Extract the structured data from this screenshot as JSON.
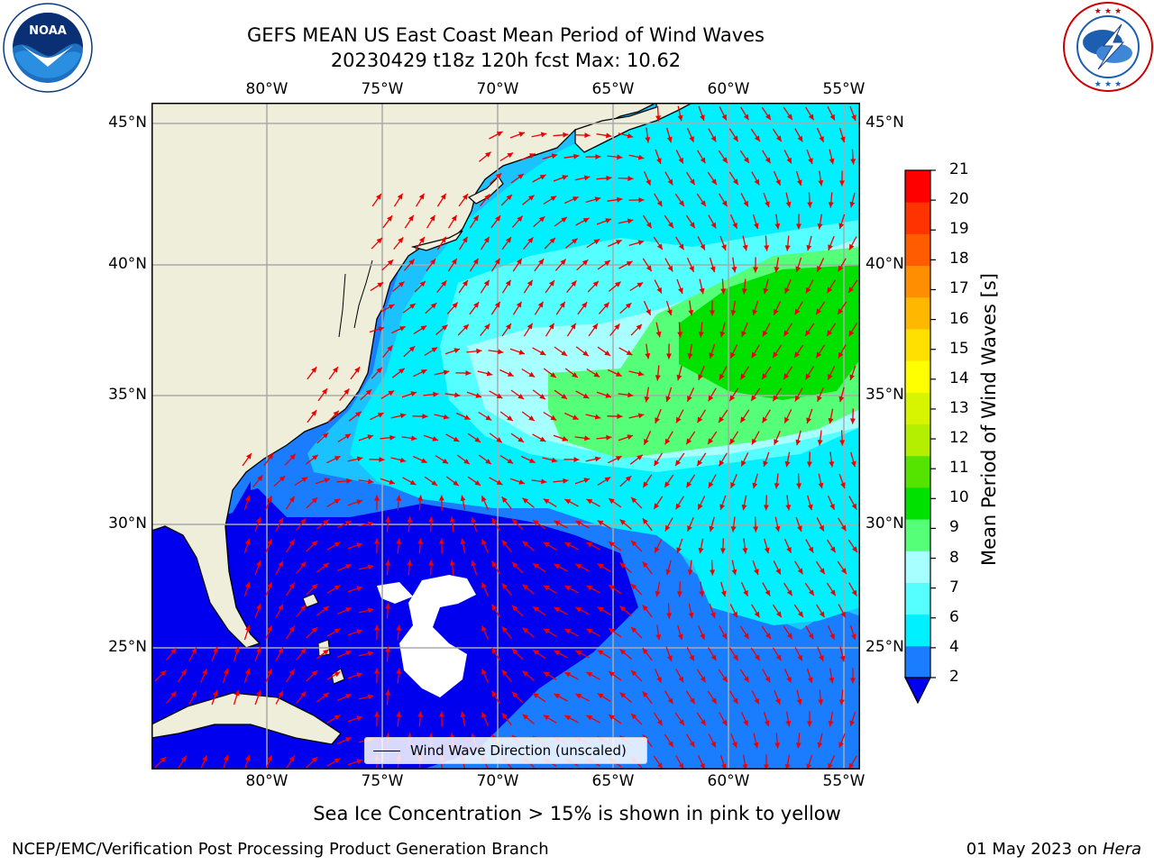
{
  "title": {
    "line1": "GEFS MEAN US East Coast Mean Period of Wind Waves",
    "line2": "20230429 t18z 120h fcst   Max: 10.62"
  },
  "axes": {
    "lon_ticks": [
      "80°W",
      "75°W",
      "70°W",
      "65°W",
      "60°W",
      "55°W"
    ],
    "lat_ticks": [
      "45°N",
      "40°N",
      "35°N",
      "30°N",
      "25°N"
    ]
  },
  "colorbar": {
    "label": "Mean Period of Wind Waves [s]",
    "ticks": [
      "2",
      "4",
      "6",
      "7",
      "8",
      "9",
      "10",
      "11",
      "12",
      "13",
      "14",
      "15",
      "16",
      "17",
      "18",
      "19",
      "20",
      "21"
    ]
  },
  "legend": {
    "label": "Wind Wave Direction (unscaled)"
  },
  "ice_note": "Sea Ice Concentration > 15% is shown in pink to yellow",
  "footer": {
    "left": "NCEP/EMC/Verification Post Processing Product Generation Branch",
    "right_date": "01 May 2023 on ",
    "right_host": "Hera"
  },
  "logos": {
    "left": "NOAA",
    "right": "NATIONAL WEATHER SERVICE"
  },
  "colors": {
    "land": "#efeedb",
    "c2": "#0000ee",
    "c4": "#1a7cff",
    "c6": "#1cc2ff",
    "c7": "#00f0ff",
    "c8": "#55ffff",
    "c9": "#a8ffff",
    "c10": "#55ff77",
    "c11": "#00e100",
    "arrow": "#ee0000"
  }
}
